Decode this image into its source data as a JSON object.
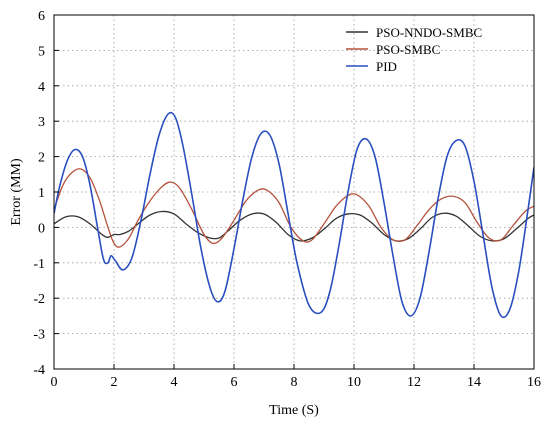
{
  "chart_data": {
    "type": "line",
    "xlabel": "Time (S)",
    "ylabel": "Error (MM)",
    "xlim": [
      0,
      16
    ],
    "ylim": [
      -4,
      6
    ],
    "xticks": [
      0,
      2,
      4,
      6,
      8,
      10,
      12,
      14,
      16
    ],
    "yticks": [
      -4,
      -3,
      -2,
      -1,
      0,
      1,
      2,
      3,
      4,
      5,
      6
    ],
    "grid": true,
    "legend_position": "top-right",
    "series": [
      {
        "name": "PSO-NNDO-SMBC",
        "color": "#333333",
        "x": [
          0,
          0.4,
          0.8,
          1.2,
          1.6,
          1.8,
          2.0,
          2.2,
          2.5,
          2.8,
          3.2,
          3.6,
          4.0,
          4.4,
          4.8,
          5.2,
          5.5,
          5.8,
          6.2,
          6.6,
          7.0,
          7.4,
          7.8,
          8.2,
          8.6,
          9.0,
          9.4,
          9.8,
          10.2,
          10.6,
          11.0,
          11.4,
          11.8,
          12.2,
          12.6,
          13.0,
          13.4,
          13.8,
          14.2,
          14.6,
          15.0,
          15.4,
          15.8,
          16.0
        ],
        "y": [
          0.1,
          0.3,
          0.3,
          0.1,
          -0.2,
          -0.28,
          -0.2,
          -0.2,
          -0.1,
          0.1,
          0.35,
          0.45,
          0.38,
          0.1,
          -0.15,
          -0.3,
          -0.3,
          -0.1,
          0.2,
          0.38,
          0.38,
          0.15,
          -0.2,
          -0.38,
          -0.3,
          -0.05,
          0.25,
          0.38,
          0.35,
          0.12,
          -0.2,
          -0.38,
          -0.32,
          -0.05,
          0.28,
          0.4,
          0.32,
          0.05,
          -0.25,
          -0.38,
          -0.32,
          -0.05,
          0.25,
          0.35
        ]
      },
      {
        "name": "PSO-SMBC",
        "color": "#b5523b",
        "x": [
          0,
          0.3,
          0.6,
          0.9,
          1.2,
          1.5,
          1.8,
          2.0,
          2.2,
          2.5,
          2.8,
          3.2,
          3.6,
          3.9,
          4.2,
          4.6,
          5.0,
          5.3,
          5.6,
          6.0,
          6.4,
          6.8,
          7.1,
          7.5,
          7.9,
          8.3,
          8.6,
          9.0,
          9.4,
          9.8,
          10.1,
          10.5,
          10.9,
          11.3,
          11.7,
          12.1,
          12.5,
          12.9,
          13.3,
          13.7,
          14.1,
          14.5,
          14.9,
          15.3,
          15.7,
          16.0
        ],
        "y": [
          0.5,
          1.2,
          1.55,
          1.65,
          1.4,
          0.8,
          0.0,
          -0.45,
          -0.55,
          -0.3,
          0.2,
          0.75,
          1.15,
          1.28,
          1.1,
          0.5,
          -0.2,
          -0.45,
          -0.3,
          0.2,
          0.75,
          1.05,
          1.05,
          0.7,
          0.0,
          -0.38,
          -0.35,
          0.1,
          0.6,
          0.9,
          0.92,
          0.6,
          0.0,
          -0.35,
          -0.35,
          0.05,
          0.5,
          0.8,
          0.88,
          0.7,
          0.15,
          -0.3,
          -0.35,
          0.05,
          0.45,
          0.6
        ]
      },
      {
        "name": "PID",
        "color": "#2a4fbf",
        "x": [
          0,
          0.2,
          0.45,
          0.7,
          0.95,
          1.2,
          1.45,
          1.65,
          1.8,
          1.9,
          2.05,
          2.3,
          2.6,
          2.9,
          3.2,
          3.5,
          3.8,
          4.05,
          4.3,
          4.6,
          4.9,
          5.2,
          5.45,
          5.7,
          6.0,
          6.3,
          6.6,
          6.9,
          7.2,
          7.5,
          7.8,
          8.1,
          8.5,
          8.9,
          9.2,
          9.5,
          9.8,
          10.1,
          10.4,
          10.7,
          11.0,
          11.3,
          11.6,
          11.9,
          12.2,
          12.5,
          12.8,
          13.1,
          13.4,
          13.7,
          14.0,
          14.3,
          14.6,
          14.9,
          15.2,
          15.5,
          15.8,
          16.0
        ],
        "y": [
          0.4,
          1.2,
          1.9,
          2.2,
          2.0,
          1.2,
          0.0,
          -0.9,
          -1.0,
          -0.8,
          -0.95,
          -1.2,
          -0.85,
          0.2,
          1.5,
          2.6,
          3.2,
          3.1,
          2.3,
          0.9,
          -0.6,
          -1.7,
          -2.1,
          -1.8,
          -0.6,
          0.8,
          2.0,
          2.65,
          2.6,
          1.8,
          0.4,
          -1.0,
          -2.2,
          -2.4,
          -1.8,
          -0.5,
          1.0,
          2.2,
          2.5,
          2.0,
          0.7,
          -0.8,
          -2.1,
          -2.5,
          -2.0,
          -0.7,
          0.8,
          2.0,
          2.45,
          2.3,
          1.3,
          -0.2,
          -1.7,
          -2.5,
          -2.3,
          -1.2,
          0.5,
          1.7
        ]
      }
    ]
  }
}
